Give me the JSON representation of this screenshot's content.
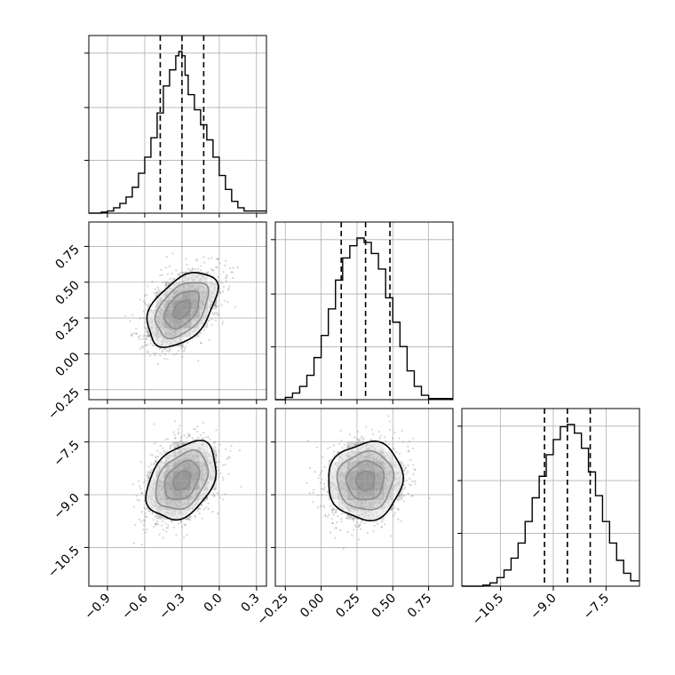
{
  "chart_data": {
    "type": "corner",
    "grid": true,
    "parameters": [
      {
        "range": [
          -1.05,
          0.38
        ],
        "ticks": [
          -0.9,
          -0.6,
          -0.3,
          0.0,
          0.3
        ],
        "tick_labels": [
          "−0.9",
          "−0.6",
          "−0.3",
          "0.0",
          "0.3"
        ],
        "mean": -0.3,
        "sd": 0.14,
        "quantiles": [
          -0.475,
          -0.3,
          -0.125
        ]
      },
      {
        "range": [
          -0.32,
          0.92
        ],
        "ticks": [
          -0.25,
          0.0,
          0.25,
          0.5,
          0.75
        ],
        "tick_labels": [
          "−0.25",
          "0.00",
          "0.25",
          "0.50",
          "0.75"
        ],
        "mean": 0.31,
        "sd": 0.13,
        "quantiles": [
          0.14,
          0.31,
          0.48
        ]
      },
      {
        "range": [
          -11.6,
          -6.55
        ],
        "ticks": [
          -10.5,
          -9.0,
          -7.5
        ],
        "tick_labels": [
          "−10.5",
          "−9.0",
          "−7.5"
        ],
        "mean": -8.6,
        "sd": 0.55,
        "quantiles": [
          -9.25,
          -8.6,
          -7.95
        ]
      }
    ],
    "histograms": [
      {
        "param": 0,
        "bin_edges": [
          -1.05,
          -0.95,
          -0.9,
          -0.85,
          -0.8,
          -0.75,
          -0.7,
          -0.65,
          -0.6,
          -0.55,
          -0.5,
          -0.45,
          -0.4,
          -0.35,
          -0.325,
          -0.3,
          -0.275,
          -0.25,
          -0.2,
          -0.15,
          -0.1,
          -0.05,
          0.0,
          0.05,
          0.1,
          0.15,
          0.2,
          0.38
        ],
        "counts": [
          0,
          1,
          2,
          5,
          9,
          15,
          24,
          37,
          52,
          70,
          93,
          118,
          133,
          146,
          150,
          146,
          128,
          110,
          96,
          82,
          68,
          52,
          35,
          22,
          11,
          5,
          2
        ]
      },
      {
        "param": 1,
        "bin_edges": [
          -0.32,
          -0.25,
          -0.2,
          -0.15,
          -0.1,
          -0.05,
          0.0,
          0.05,
          0.1,
          0.15,
          0.2,
          0.25,
          0.3,
          0.35,
          0.4,
          0.45,
          0.5,
          0.55,
          0.6,
          0.65,
          0.7,
          0.75,
          0.92
        ],
        "counts": [
          0,
          2,
          6,
          12,
          22,
          38,
          58,
          82,
          108,
          128,
          139,
          146,
          142,
          132,
          118,
          92,
          70,
          48,
          26,
          12,
          4,
          1
        ]
      },
      {
        "param": 2,
        "bin_edges": [
          -11.6,
          -11.0,
          -10.8,
          -10.6,
          -10.4,
          -10.2,
          -10.0,
          -9.8,
          -9.6,
          -9.4,
          -9.2,
          -9.0,
          -8.8,
          -8.6,
          -8.4,
          -8.2,
          -8.0,
          -7.8,
          -7.6,
          -7.4,
          -7.2,
          -7.0,
          -6.8,
          -6.55
        ],
        "counts": [
          0,
          1,
          3,
          8,
          15,
          26,
          40,
          60,
          82,
          102,
          122,
          136,
          148,
          150,
          142,
          128,
          106,
          84,
          60,
          40,
          24,
          12,
          5
        ]
      }
    ],
    "pairs": [
      {
        "x_param": 0,
        "y_param": 1,
        "correlation": 0.45
      },
      {
        "x_param": 0,
        "y_param": 2,
        "correlation": 0.35
      },
      {
        "x_param": 1,
        "y_param": 2,
        "correlation": 0.05
      }
    ],
    "contour_sigma_levels": [
      0.5,
      1.0,
      1.5,
      2.0
    ],
    "colors": {
      "line": "#000000",
      "grid": "#b0b0b0",
      "density": "#000000",
      "points": "#888888"
    }
  }
}
